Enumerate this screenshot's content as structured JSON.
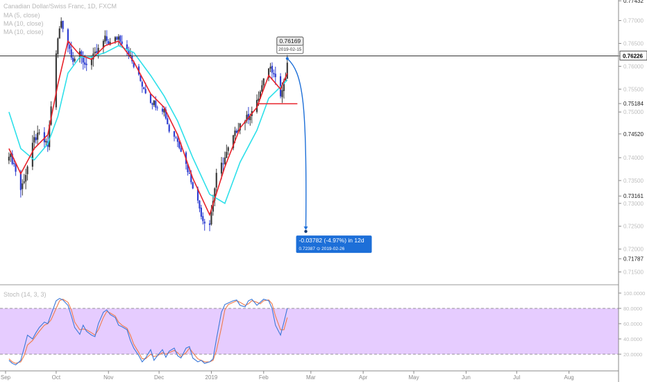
{
  "header": {
    "symbol_line": "Canadian Dollar/Swiss Franc, 1D, FXCM",
    "indicators": [
      "MA (5, close)",
      "MA (10, close)",
      "MA (10, close)"
    ]
  },
  "colors": {
    "up_candle": "#3c3c3c",
    "down_candle": "#2f3fd1",
    "ma_fast": "#e8222a",
    "ma_slow": "#2ee0ea",
    "projection": "#1d6fd8",
    "horizontal_line": "#333333",
    "support_line": "#e8222a",
    "stoch_band": "#e6ccff",
    "stoch_k": "#3b78d8",
    "stoch_d": "#f07a4a"
  },
  "chart_data": [
    {
      "type": "candlestick",
      "title": "Canadian Dollar/Swiss Franc, 1D, FXCM",
      "ylim": [
        0.7125,
        0.7745
      ],
      "y_ticks": [
        "0.77432",
        "0.77000",
        "0.76500",
        "0.76226",
        "0.76000",
        "0.75500",
        "0.75184",
        "0.75000",
        "0.74520",
        "0.74000",
        "0.73500",
        "0.73161",
        "0.73000",
        "0.72500",
        "0.72000",
        "0.71787",
        "0.71500"
      ],
      "highlight_ticks": [
        "0.77432",
        "0.76226",
        "0.75184",
        "0.74520",
        "0.73161",
        "0.71787"
      ],
      "x_ticks": [
        {
          "label": "Sep",
          "date": "2018-09-01"
        },
        {
          "label": "Oct",
          "date": "2018-10-01"
        },
        {
          "label": "Nov",
          "date": "2018-11-01"
        },
        {
          "label": "Dec",
          "date": "2018-12-01"
        },
        {
          "label": "2019",
          "date": "2019-01-01"
        },
        {
          "label": "Feb",
          "date": "2019-02-01"
        },
        {
          "label": "Mar",
          "date": "2019-03-01"
        },
        {
          "label": "Apr",
          "date": "2019-04-01"
        },
        {
          "label": "May",
          "date": "2019-05-01"
        },
        {
          "label": "Jun",
          "date": "2019-06-01"
        },
        {
          "label": "Jul",
          "date": "2019-07-01"
        },
        {
          "label": "Aug",
          "date": "2019-08-01"
        }
      ],
      "close_path": [
        [
          "2018-09-03",
          0.741
        ],
        [
          "2018-09-06",
          0.7385
        ],
        [
          "2018-09-10",
          0.733
        ],
        [
          "2018-09-13",
          0.7365
        ],
        [
          "2018-09-18",
          0.744
        ],
        [
          "2018-09-21",
          0.745
        ],
        [
          "2018-09-26",
          0.7425
        ],
        [
          "2018-09-28",
          0.7515
        ],
        [
          "2018-10-02",
          0.766
        ],
        [
          "2018-10-04",
          0.77
        ],
        [
          "2018-10-08",
          0.765
        ],
        [
          "2018-10-11",
          0.7615
        ],
        [
          "2018-10-15",
          0.7625
        ],
        [
          "2018-10-18",
          0.7605
        ],
        [
          "2018-10-22",
          0.7615
        ],
        [
          "2018-10-25",
          0.763
        ],
        [
          "2018-10-30",
          0.766
        ],
        [
          "2018-11-02",
          0.765
        ],
        [
          "2018-11-07",
          0.7665
        ],
        [
          "2018-11-12",
          0.764
        ],
        [
          "2018-11-16",
          0.76
        ],
        [
          "2018-11-21",
          0.756
        ],
        [
          "2018-11-26",
          0.7525
        ],
        [
          "2018-11-30",
          0.7515
        ],
        [
          "2018-12-04",
          0.7505
        ],
        [
          "2018-12-07",
          0.746
        ],
        [
          "2018-12-12",
          0.744
        ],
        [
          "2018-12-17",
          0.7385
        ],
        [
          "2018-12-21",
          0.734
        ],
        [
          "2018-12-27",
          0.7265
        ],
        [
          "2018-12-31",
          0.7255
        ],
        [
          "2019-01-04",
          0.736
        ],
        [
          "2019-01-09",
          0.74
        ],
        [
          "2019-01-14",
          0.7445
        ],
        [
          "2019-01-18",
          0.7475
        ],
        [
          "2019-01-23",
          0.749
        ],
        [
          "2019-01-28",
          0.752
        ],
        [
          "2019-01-31",
          0.7555
        ],
        [
          "2019-02-04",
          0.76
        ],
        [
          "2019-02-07",
          0.759
        ],
        [
          "2019-02-11",
          0.7535
        ],
        [
          "2019-02-14",
          0.7575
        ],
        [
          "2019-02-15",
          0.76
        ]
      ],
      "ma_fast_path": [
        [
          "2018-09-03",
          0.742
        ],
        [
          "2018-09-10",
          0.7365
        ],
        [
          "2018-09-18",
          0.742
        ],
        [
          "2018-09-26",
          0.745
        ],
        [
          "2018-10-02",
          0.756
        ],
        [
          "2018-10-08",
          0.7655
        ],
        [
          "2018-10-15",
          0.7625
        ],
        [
          "2018-10-22",
          0.7615
        ],
        [
          "2018-10-30",
          0.7645
        ],
        [
          "2018-11-07",
          0.7655
        ],
        [
          "2018-11-16",
          0.761
        ],
        [
          "2018-11-26",
          0.754
        ],
        [
          "2018-12-04",
          0.751
        ],
        [
          "2018-12-12",
          0.745
        ],
        [
          "2018-12-21",
          0.7355
        ],
        [
          "2018-12-31",
          0.7275
        ],
        [
          "2019-01-09",
          0.738
        ],
        [
          "2019-01-18",
          0.7465
        ],
        [
          "2019-01-28",
          0.751
        ],
        [
          "2019-02-04",
          0.758
        ],
        [
          "2019-02-11",
          0.755
        ],
        [
          "2019-02-15",
          0.7585
        ]
      ],
      "ma_slow_path": [
        [
          "2018-09-03",
          0.75
        ],
        [
          "2018-09-10",
          0.742
        ],
        [
          "2018-09-18",
          0.7395
        ],
        [
          "2018-09-26",
          0.743
        ],
        [
          "2018-10-02",
          0.749
        ],
        [
          "2018-10-08",
          0.7585
        ],
        [
          "2018-10-15",
          0.762
        ],
        [
          "2018-10-22",
          0.762
        ],
        [
          "2018-10-30",
          0.763
        ],
        [
          "2018-11-07",
          0.7645
        ],
        [
          "2018-11-16",
          0.763
        ],
        [
          "2018-11-26",
          0.758
        ],
        [
          "2018-12-04",
          0.7535
        ],
        [
          "2018-12-12",
          0.748
        ],
        [
          "2018-12-21",
          0.74
        ],
        [
          "2018-12-31",
          0.732
        ],
        [
          "2019-01-09",
          0.73
        ],
        [
          "2019-01-18",
          0.739
        ],
        [
          "2019-01-28",
          0.746
        ],
        [
          "2019-02-04",
          0.753
        ],
        [
          "2019-02-11",
          0.7555
        ],
        [
          "2019-02-15",
          0.757
        ]
      ],
      "horizontal_line": {
        "value": 0.76226,
        "label": "0.76226"
      },
      "support_line": {
        "value": 0.7518,
        "from": "2019-01-28",
        "to": "2019-02-21"
      },
      "callout": {
        "price": "0.76169",
        "date": "2019-02-15"
      },
      "projection": {
        "from": [
          "2019-02-15",
          0.7617
        ],
        "to": [
          "2019-02-26",
          0.72387
        ],
        "label_main": "-0.03782 (-4.97%) in 12d",
        "label_price": "0.72387",
        "label_date": "2019-02-26",
        "clock_glyph": "⊙"
      }
    },
    {
      "type": "line",
      "title": "Stoch (14, 3, 3)",
      "ylim": [
        0,
        110
      ],
      "y_ticks": [
        "100.0000",
        "80.0000",
        "60.0000",
        "40.0000",
        "20.0000"
      ],
      "band": [
        20,
        80
      ],
      "series": [
        {
          "points": [
            [
              "2018-09-03",
              12
            ],
            [
              "2018-09-05",
              8
            ],
            [
              "2018-09-07",
              6
            ],
            [
              "2018-09-10",
              12
            ],
            [
              "2018-09-12",
              28
            ],
            [
              "2018-09-14",
              45
            ],
            [
              "2018-09-17",
              40
            ],
            [
              "2018-09-19",
              48
            ],
            [
              "2018-09-21",
              55
            ],
            [
              "2018-09-24",
              62
            ],
            [
              "2018-09-26",
              60
            ],
            [
              "2018-09-28",
              72
            ],
            [
              "2018-10-01",
              90
            ],
            [
              "2018-10-03",
              93
            ],
            [
              "2018-10-05",
              91
            ],
            [
              "2018-10-08",
              84
            ],
            [
              "2018-10-10",
              70
            ],
            [
              "2018-10-12",
              55
            ],
            [
              "2018-10-15",
              46
            ],
            [
              "2018-10-17",
              58
            ],
            [
              "2018-10-19",
              50
            ],
            [
              "2018-10-22",
              45
            ],
            [
              "2018-10-24",
              43
            ],
            [
              "2018-10-26",
              60
            ],
            [
              "2018-10-29",
              75
            ],
            [
              "2018-10-31",
              78
            ],
            [
              "2018-11-02",
              72
            ],
            [
              "2018-11-05",
              68
            ],
            [
              "2018-11-07",
              58
            ],
            [
              "2018-11-09",
              56
            ],
            [
              "2018-11-12",
              52
            ],
            [
              "2018-11-14",
              38
            ],
            [
              "2018-11-16",
              28
            ],
            [
              "2018-11-19",
              18
            ],
            [
              "2018-11-21",
              10
            ],
            [
              "2018-11-23",
              15
            ],
            [
              "2018-11-26",
              26
            ],
            [
              "2018-11-28",
              12
            ],
            [
              "2018-11-30",
              18
            ],
            [
              "2018-12-03",
              26
            ],
            [
              "2018-12-05",
              16
            ],
            [
              "2018-12-07",
              24
            ],
            [
              "2018-12-10",
              28
            ],
            [
              "2018-12-12",
              18
            ],
            [
              "2018-12-14",
              15
            ],
            [
              "2018-12-17",
              28
            ],
            [
              "2018-12-19",
              30
            ],
            [
              "2018-12-21",
              15
            ],
            [
              "2018-12-24",
              10
            ],
            [
              "2018-12-26",
              12
            ],
            [
              "2018-12-28",
              8
            ],
            [
              "2018-12-31",
              10
            ],
            [
              "2019-01-02",
              14
            ],
            [
              "2019-01-04",
              40
            ],
            [
              "2019-01-07",
              75
            ],
            [
              "2019-01-09",
              85
            ],
            [
              "2019-01-11",
              87
            ],
            [
              "2019-01-14",
              90
            ],
            [
              "2019-01-16",
              91
            ],
            [
              "2019-01-18",
              84
            ],
            [
              "2019-01-21",
              82
            ],
            [
              "2019-01-23",
              90
            ],
            [
              "2019-01-25",
              92
            ],
            [
              "2019-01-28",
              84
            ],
            [
              "2019-01-30",
              88
            ],
            [
              "2019-02-01",
              92
            ],
            [
              "2019-02-04",
              90
            ],
            [
              "2019-02-06",
              80
            ],
            [
              "2019-02-08",
              58
            ],
            [
              "2019-02-11",
              45
            ],
            [
              "2019-02-13",
              62
            ],
            [
              "2019-02-15",
              80
            ]
          ]
        },
        {
          "points": [
            [
              "2018-09-03",
              14
            ],
            [
              "2018-09-05",
              10
            ],
            [
              "2018-09-07",
              8
            ],
            [
              "2018-09-10",
              10
            ],
            [
              "2018-09-12",
              18
            ],
            [
              "2018-09-14",
              32
            ],
            [
              "2018-09-17",
              38
            ],
            [
              "2018-09-19",
              44
            ],
            [
              "2018-09-21",
              50
            ],
            [
              "2018-09-24",
              58
            ],
            [
              "2018-09-26",
              60
            ],
            [
              "2018-09-28",
              65
            ],
            [
              "2018-10-01",
              80
            ],
            [
              "2018-10-03",
              90
            ],
            [
              "2018-10-05",
              92
            ],
            [
              "2018-10-08",
              88
            ],
            [
              "2018-10-10",
              78
            ],
            [
              "2018-10-12",
              62
            ],
            [
              "2018-10-15",
              52
            ],
            [
              "2018-10-17",
              53
            ],
            [
              "2018-10-19",
              52
            ],
            [
              "2018-10-22",
              48
            ],
            [
              "2018-10-24",
              45
            ],
            [
              "2018-10-26",
              52
            ],
            [
              "2018-10-29",
              68
            ],
            [
              "2018-10-31",
              76
            ],
            [
              "2018-11-02",
              74
            ],
            [
              "2018-11-05",
              70
            ],
            [
              "2018-11-07",
              62
            ],
            [
              "2018-11-09",
              58
            ],
            [
              "2018-11-12",
              54
            ],
            [
              "2018-11-14",
              45
            ],
            [
              "2018-11-16",
              33
            ],
            [
              "2018-11-19",
              22
            ],
            [
              "2018-11-21",
              14
            ],
            [
              "2018-11-23",
              14
            ],
            [
              "2018-11-26",
              20
            ],
            [
              "2018-11-28",
              17
            ],
            [
              "2018-11-30",
              18
            ],
            [
              "2018-12-03",
              22
            ],
            [
              "2018-12-05",
              20
            ],
            [
              "2018-12-07",
              22
            ],
            [
              "2018-12-10",
              25
            ],
            [
              "2018-12-12",
              22
            ],
            [
              "2018-12-14",
              17
            ],
            [
              "2018-12-17",
              22
            ],
            [
              "2018-12-19",
              28
            ],
            [
              "2018-12-21",
              22
            ],
            [
              "2018-12-24",
              14
            ],
            [
              "2018-12-26",
              12
            ],
            [
              "2018-12-28",
              10
            ],
            [
              "2018-12-31",
              10
            ],
            [
              "2019-01-02",
              12
            ],
            [
              "2019-01-04",
              25
            ],
            [
              "2019-01-07",
              55
            ],
            [
              "2019-01-09",
              78
            ],
            [
              "2019-01-11",
              85
            ],
            [
              "2019-01-14",
              88
            ],
            [
              "2019-01-16",
              90
            ],
            [
              "2019-01-18",
              88
            ],
            [
              "2019-01-21",
              84
            ],
            [
              "2019-01-23",
              86
            ],
            [
              "2019-01-25",
              90
            ],
            [
              "2019-01-28",
              88
            ],
            [
              "2019-01-30",
              86
            ],
            [
              "2019-02-01",
              90
            ],
            [
              "2019-02-04",
              91
            ],
            [
              "2019-02-06",
              86
            ],
            [
              "2019-02-08",
              70
            ],
            [
              "2019-02-11",
              52
            ],
            [
              "2019-02-13",
              52
            ],
            [
              "2019-02-15",
              68
            ]
          ]
        }
      ]
    }
  ]
}
